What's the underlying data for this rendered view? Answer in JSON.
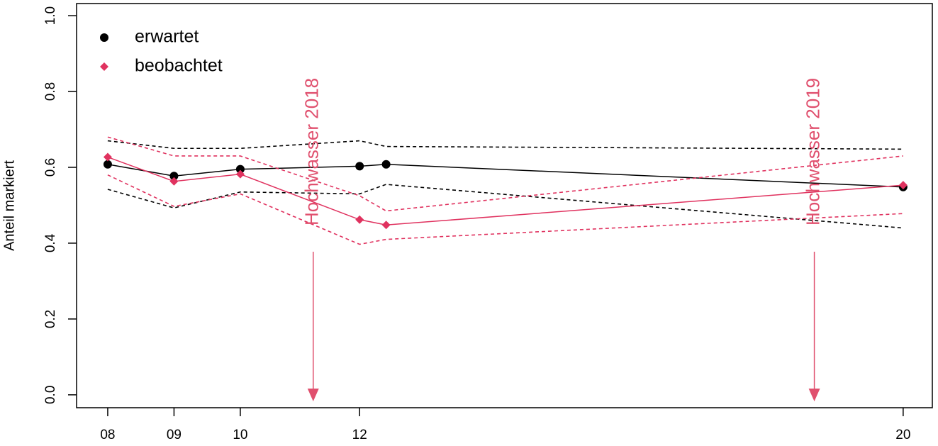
{
  "chart_data": {
    "type": "line",
    "ylabel": "Anteil markiert",
    "x": [
      8,
      9,
      10,
      11.8,
      12.2,
      20
    ],
    "xlim": [
      7.53,
      20.44
    ],
    "xticks": [
      {
        "value": 8,
        "label": "08"
      },
      {
        "value": 9,
        "label": "09"
      },
      {
        "value": 10,
        "label": "10"
      },
      {
        "value": 11.8,
        "label": "12"
      },
      {
        "value": 20,
        "label": "20"
      }
    ],
    "ylim": [
      -0.034,
      1.032
    ],
    "yticks": [
      {
        "value": 0,
        "label": "0.0"
      },
      0.2,
      0.4,
      0.6,
      0.8,
      {
        "value": 1,
        "label": "1.0"
      }
    ],
    "legend": "top-left",
    "series": [
      {
        "name": "erwartet",
        "color": "#000000",
        "marker": "circle",
        "values": [
          0.608,
          0.577,
          0.595,
          0.603,
          0.608,
          0.548
        ],
        "upper": [
          0.67,
          0.65,
          0.65,
          0.67,
          0.655,
          0.648
        ],
        "lower": [
          0.542,
          0.493,
          0.535,
          0.53,
          0.555,
          0.44
        ]
      },
      {
        "name": "beobachtet",
        "color": "#e0325f",
        "marker": "diamond",
        "values": [
          0.627,
          0.563,
          0.582,
          0.462,
          0.448,
          0.553
        ],
        "upper": [
          0.68,
          0.63,
          0.63,
          0.525,
          0.485,
          0.63
        ],
        "lower": [
          0.58,
          0.497,
          0.53,
          0.397,
          0.41,
          0.478
        ]
      }
    ],
    "annotations": [
      {
        "text": "Hochwasser 2018",
        "x": 11.1,
        "color": "#e0506e"
      },
      {
        "text": "Hochwasser 2019",
        "x": 18.66,
        "color": "#e0506e"
      }
    ]
  }
}
